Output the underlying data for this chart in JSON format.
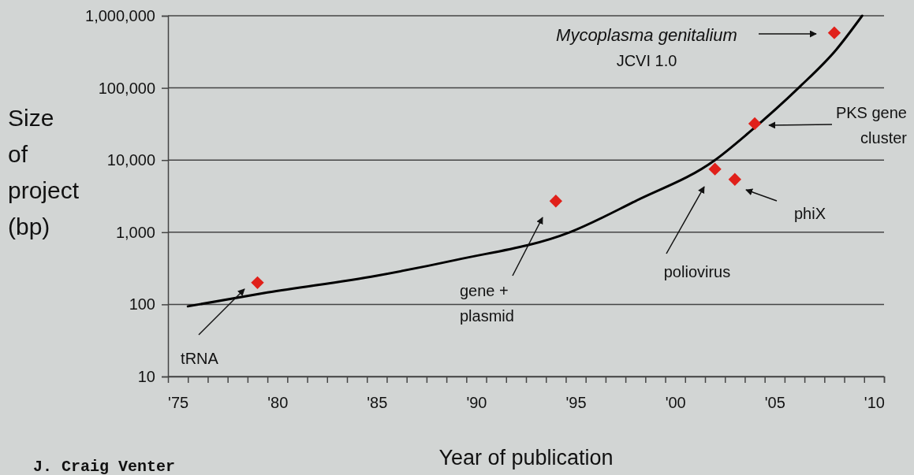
{
  "chart_data": {
    "type": "scatter",
    "xlabel": "Year of publication",
    "ylabel": "Size of project (bp)",
    "xlim": [
      1974.5,
      2010.5
    ],
    "xticks": [
      {
        "value": 1975,
        "label": "'75"
      },
      {
        "value": 1980,
        "label": "'80"
      },
      {
        "value": 1985,
        "label": "'85"
      },
      {
        "value": 1990,
        "label": "'90"
      },
      {
        "value": 1995,
        "label": "'95"
      },
      {
        "value": 2000,
        "label": "'00"
      },
      {
        "value": 2005,
        "label": "'05"
      },
      {
        "value": 2010,
        "label": "'10"
      },
      {
        "value": 1975.5,
        "label": null
      },
      {
        "value": 1976.5,
        "label": null
      },
      {
        "value": 1977.5,
        "label": null
      },
      {
        "value": 1978.5,
        "label": null
      },
      {
        "value": 1979.5,
        "label": null
      },
      {
        "value": 1980.5,
        "label": null
      },
      {
        "value": 1981.5,
        "label": null
      },
      {
        "value": 1982.5,
        "label": null
      },
      {
        "value": 1983.5,
        "label": null
      },
      {
        "value": 1984.5,
        "label": null
      },
      {
        "value": 1985.5,
        "label": null
      },
      {
        "value": 1986.5,
        "label": null
      },
      {
        "value": 1987.5,
        "label": null
      },
      {
        "value": 1988.5,
        "label": null
      },
      {
        "value": 1989.5,
        "label": null
      },
      {
        "value": 1990.5,
        "label": null
      },
      {
        "value": 1991.5,
        "label": null
      },
      {
        "value": 1992.5,
        "label": null
      },
      {
        "value": 1993.5,
        "label": null
      },
      {
        "value": 1994.5,
        "label": null
      },
      {
        "value": 1995.5,
        "label": null
      },
      {
        "value": 1996.5,
        "label": null
      },
      {
        "value": 1997.5,
        "label": null
      },
      {
        "value": 1998.5,
        "label": null
      },
      {
        "value": 1999.5,
        "label": null
      },
      {
        "value": 2000.5,
        "label": null
      },
      {
        "value": 2001.5,
        "label": null
      },
      {
        "value": 2002.5,
        "label": null
      },
      {
        "value": 2003.5,
        "label": null
      },
      {
        "value": 2004.5,
        "label": null
      },
      {
        "value": 2005.5,
        "label": null
      },
      {
        "value": 2006.5,
        "label": null
      },
      {
        "value": 2007.5,
        "label": null
      },
      {
        "value": 2008.5,
        "label": null
      },
      {
        "value": 2009.5,
        "label": null
      },
      {
        "value": 2010.5,
        "label": null
      }
    ],
    "ylim": [
      10,
      1000000
    ],
    "yticks": [
      10,
      100,
      {
        "value": 1000,
        "label": "1,000"
      },
      {
        "value": 10000,
        "label": "10,000"
      },
      {
        "value": 100000,
        "label": "100,000"
      },
      {
        "value": 1000000,
        "label": "1,000,000"
      }
    ],
    "log": "y",
    "grid": "y",
    "series": [
      {
        "type": "line",
        "color": "#000000",
        "x": [
          1975.5,
          1979.5,
          1985,
          1989,
          1994.7,
          1998,
          2002,
          2003.7,
          2006.2,
          2008.1,
          2009.4
        ],
        "values": [
          94,
          146,
          250,
          414,
          1000,
          2700,
          10000,
          24000,
          100000,
          340000,
          1000000
        ]
      },
      {
        "marker": "diamond",
        "color": "#e0201a",
        "x": [
          1979,
          1994,
          2002,
          2003,
          2004,
          2008
        ],
        "values": [
          200,
          2700,
          7500,
          5400,
          32000,
          580000
        ]
      }
    ],
    "annotations": [
      "tRNA",
      "gene +\nplasmid",
      "poliovirus",
      "phiX",
      "PKS gene\ncluster",
      "Mycoplasma genitalium\nJCVI 1.0",
      "J. Craig Venter"
    ]
  }
}
